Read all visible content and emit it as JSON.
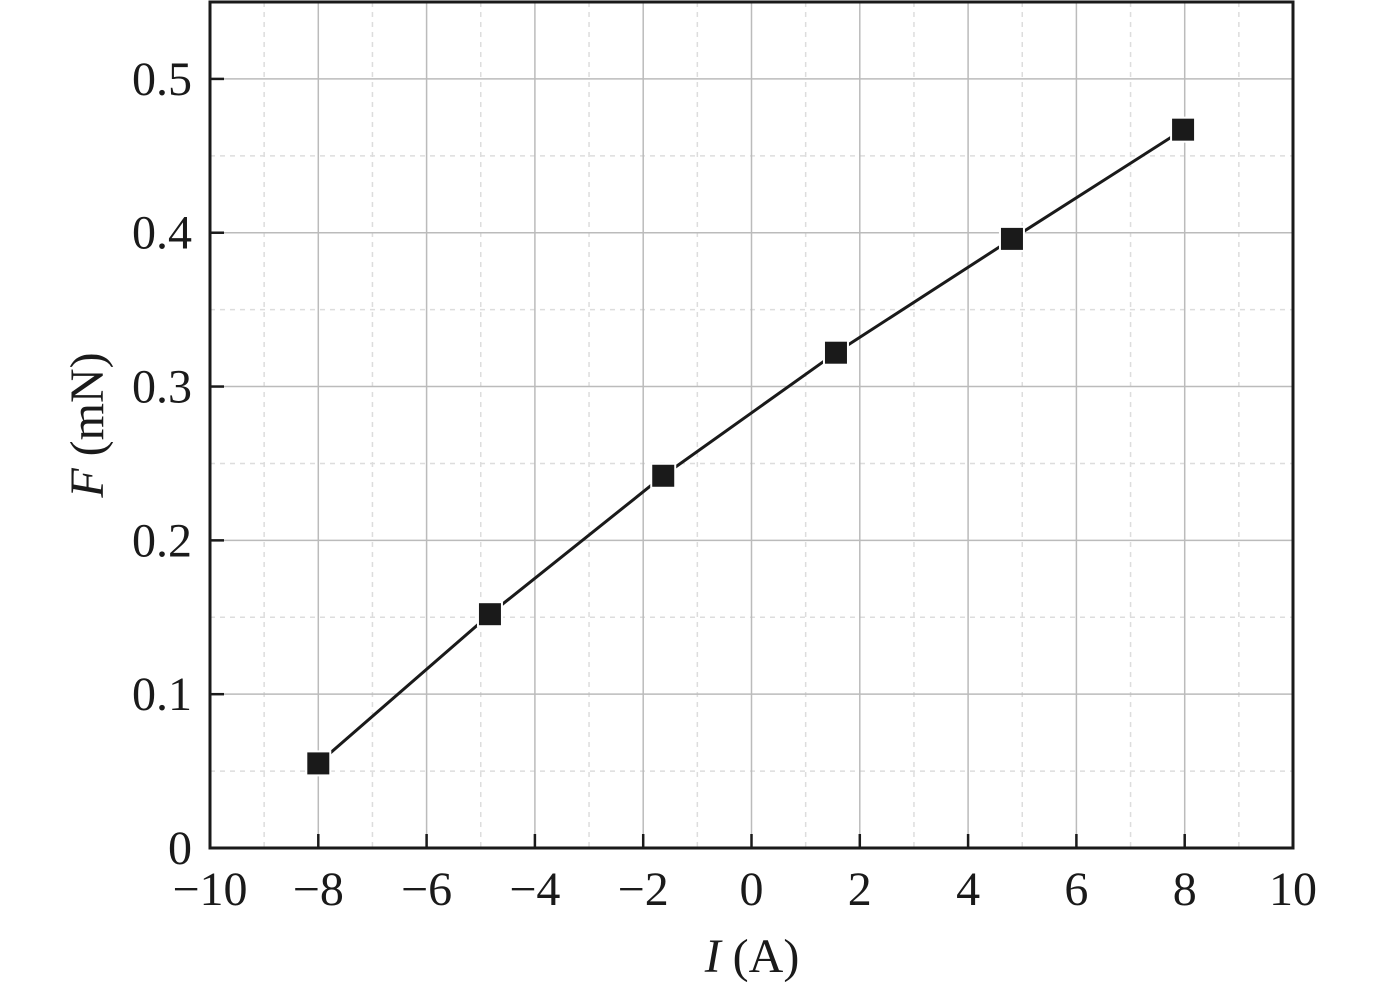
{
  "chart_data": {
    "type": "line",
    "xlabel": {
      "symbol": "I",
      "unit": "(A)"
    },
    "ylabel": {
      "symbol": "F",
      "unit": "(mN)"
    },
    "x": [
      -8,
      -4.83,
      -1.63,
      1.56,
      4.81,
      7.97
    ],
    "series": [
      {
        "color": "#1a1a1a",
        "values": [
          0.055,
          0.152,
          0.242,
          0.322,
          0.396,
          0.467
        ]
      }
    ],
    "xlim": [
      -10,
      10
    ],
    "xticks": [
      {
        "value": -10,
        "label": "−10"
      },
      {
        "value": -8,
        "label": "−8"
      },
      {
        "value": -6,
        "label": "−6"
      },
      {
        "value": -4,
        "label": "−4"
      },
      {
        "value": -2,
        "label": "−2"
      },
      0,
      2,
      4,
      6,
      8,
      10
    ],
    "ylim": [
      0,
      0.55
    ],
    "yticks": [
      0,
      0.1,
      0.2,
      0.3,
      0.4,
      0.5
    ],
    "grid": true,
    "marker": "square"
  }
}
